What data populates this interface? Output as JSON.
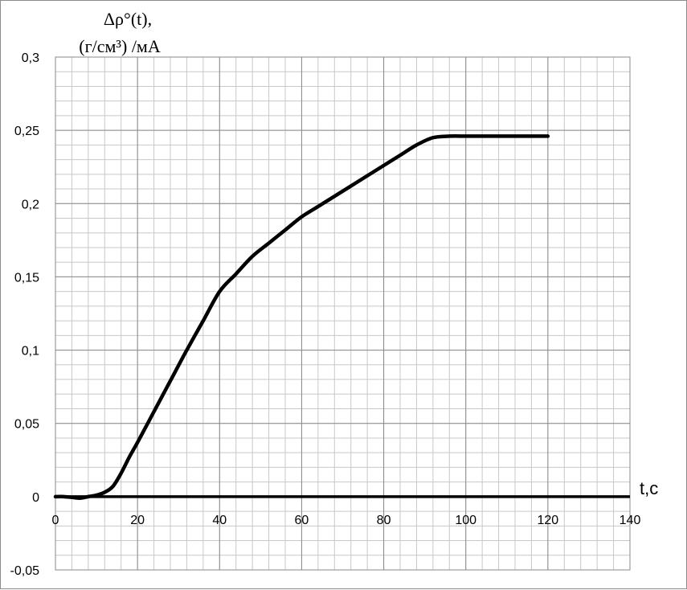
{
  "chart_data": {
    "type": "line",
    "title": "",
    "ylabel_line1": "Δρ°(t),",
    "ylabel_line2": "(г/см³) /мА",
    "xlabel": "t,c",
    "xlim": [
      0,
      140
    ],
    "ylim": [
      -0.05,
      0.3
    ],
    "x_major_step": 20,
    "x_minor_step": 4,
    "y_major_step": 0.05,
    "y_minor_step": 0.01,
    "grid": true,
    "legend": "none",
    "x_tick_labels": [
      "0",
      "20",
      "40",
      "60",
      "80",
      "100",
      "120",
      "140"
    ],
    "y_tick_labels": [
      "-0,05",
      "0",
      "0,05",
      "0,1",
      "0,15",
      "0,2",
      "0,25",
      "0,3"
    ],
    "series": [
      {
        "color": "#000000",
        "x": [
          0,
          2,
          4,
          6,
          8,
          10,
          12,
          14,
          16,
          18,
          20,
          24,
          28,
          32,
          36,
          40,
          44,
          48,
          52,
          56,
          60,
          64,
          68,
          72,
          76,
          80,
          84,
          88,
          92,
          96,
          100,
          104,
          108,
          112,
          116,
          120
        ],
        "y": [
          0,
          0,
          -0.0005,
          -0.001,
          0,
          0.001,
          0.003,
          0.007,
          0.016,
          0.027,
          0.037,
          0.058,
          0.079,
          0.1,
          0.12,
          0.14,
          0.152,
          0.164,
          0.173,
          0.182,
          0.191,
          0.198,
          0.205,
          0.212,
          0.219,
          0.226,
          0.233,
          0.24,
          0.245,
          0.246,
          0.246,
          0.246,
          0.246,
          0.246,
          0.246,
          0.246
        ]
      }
    ]
  }
}
